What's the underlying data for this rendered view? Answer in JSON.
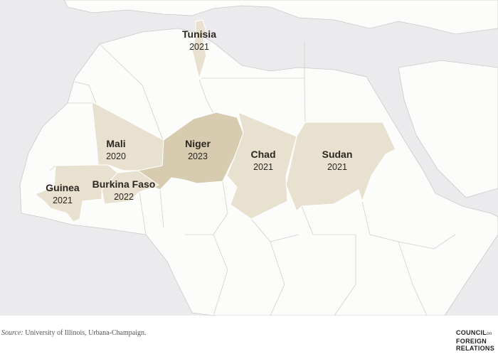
{
  "colors": {
    "ocean": "#ebebed",
    "land": "#fcfcfa",
    "coup": "#e9e1cf",
    "latest": "#d7ccaf",
    "border": "#c9c9c9"
  },
  "countries": [
    {
      "name": "Tunisia",
      "year": "2021"
    },
    {
      "name": "Mali",
      "year": "2020"
    },
    {
      "name": "Niger",
      "year": "2023"
    },
    {
      "name": "Chad",
      "year": "2021"
    },
    {
      "name": "Sudan",
      "year": "2021"
    },
    {
      "name": "Guinea",
      "year": "2021"
    },
    {
      "name": "Burkina Faso",
      "year": "2022"
    }
  ],
  "source": {
    "label": "Source:",
    "text": "University of Illinois, Urbana-Champaign."
  },
  "logo": {
    "line1": "COUNCIL",
    "on": "on",
    "line2": "FOREIGN",
    "line3": "RELATIONS"
  }
}
